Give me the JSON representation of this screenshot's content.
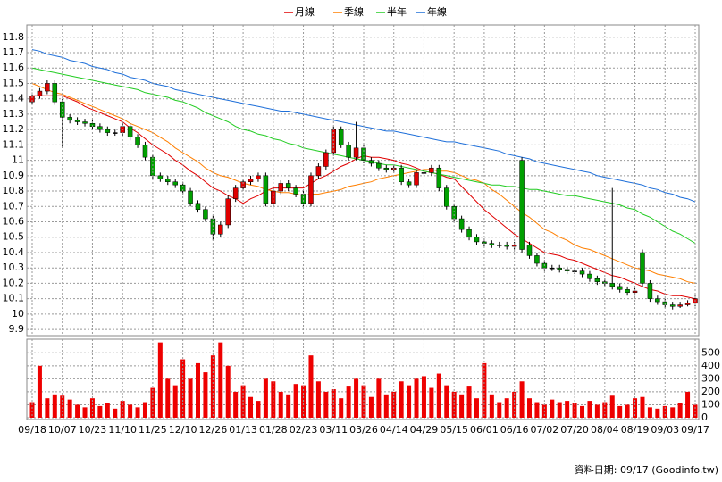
{
  "chart_data": [
    {
      "type": "candlestick",
      "open": [
        11.38,
        11.42,
        11.45,
        11.5,
        11.38,
        11.28,
        11.26,
        11.25,
        11.24,
        11.22,
        11.2,
        11.18,
        11.18,
        11.22,
        11.15,
        11.1,
        11.02,
        10.9,
        10.88,
        10.86,
        10.84,
        10.8,
        10.72,
        10.68,
        10.62,
        10.52,
        10.58,
        10.75,
        10.82,
        10.86,
        10.88,
        10.9,
        10.72,
        10.8,
        10.85,
        10.82,
        10.78,
        10.72,
        10.9,
        10.96,
        11.05,
        11.2,
        11.1,
        11.02,
        11.08,
        11.0,
        10.98,
        10.95,
        10.94,
        10.95,
        10.86,
        10.84,
        10.92,
        10.92,
        10.95,
        10.82,
        10.7,
        10.62,
        10.55,
        10.5,
        10.47,
        10.46,
        10.45,
        10.45,
        10.44,
        11.0,
        10.45,
        10.38,
        10.33,
        10.3,
        10.3,
        10.29,
        10.28,
        10.28,
        10.26,
        10.23,
        10.21,
        10.2,
        10.18,
        10.16,
        10.14,
        10.4,
        10.2,
        10.1,
        10.08,
        10.06,
        10.05,
        10.06,
        10.07
      ],
      "high": [
        11.44,
        11.47,
        11.52,
        11.52,
        11.4,
        11.3,
        11.28,
        11.27,
        11.26,
        11.24,
        11.22,
        11.2,
        11.24,
        11.24,
        11.17,
        11.12,
        11.04,
        10.92,
        10.9,
        10.88,
        10.86,
        10.82,
        10.74,
        10.7,
        10.64,
        10.6,
        10.77,
        10.84,
        10.88,
        10.9,
        10.92,
        10.92,
        10.82,
        10.87,
        10.87,
        10.84,
        10.8,
        10.92,
        10.98,
        11.07,
        11.22,
        11.22,
        11.12,
        11.25,
        11.1,
        11.02,
        11.0,
        10.97,
        10.97,
        10.97,
        10.88,
        10.94,
        10.94,
        10.97,
        10.97,
        10.84,
        10.72,
        10.64,
        10.57,
        10.52,
        10.49,
        10.48,
        10.47,
        10.47,
        10.47,
        11.02,
        10.47,
        10.4,
        10.35,
        10.32,
        10.32,
        10.31,
        10.3,
        10.3,
        10.28,
        10.25,
        10.23,
        10.82,
        10.2,
        10.18,
        10.17,
        10.42,
        10.22,
        10.12,
        10.1,
        10.08,
        10.08,
        10.09,
        10.12
      ],
      "low": [
        11.36,
        11.4,
        11.43,
        11.36,
        11.08,
        11.24,
        11.23,
        11.22,
        11.2,
        11.18,
        11.16,
        11.16,
        11.16,
        11.13,
        11.08,
        11.0,
        10.88,
        10.86,
        10.84,
        10.82,
        10.78,
        10.7,
        10.66,
        10.6,
        10.48,
        10.5,
        10.56,
        10.73,
        10.8,
        10.84,
        10.86,
        10.7,
        10.7,
        10.78,
        10.8,
        10.76,
        10.7,
        10.7,
        10.88,
        10.94,
        11.03,
        11.08,
        11.0,
        11.0,
        10.98,
        10.96,
        10.93,
        10.92,
        10.92,
        10.84,
        10.82,
        10.82,
        10.9,
        10.9,
        10.8,
        10.68,
        10.6,
        10.53,
        10.48,
        10.45,
        10.44,
        10.43,
        10.43,
        10.42,
        10.42,
        10.4,
        10.36,
        10.31,
        10.28,
        10.28,
        10.27,
        10.26,
        10.26,
        10.24,
        10.21,
        10.19,
        10.18,
        10.16,
        10.14,
        10.12,
        10.12,
        10.18,
        10.08,
        10.06,
        10.04,
        10.03,
        10.04,
        10.05,
        10.05
      ],
      "close": [
        11.42,
        11.45,
        11.5,
        11.38,
        11.28,
        11.26,
        11.25,
        11.24,
        11.22,
        11.2,
        11.18,
        11.18,
        11.22,
        11.15,
        11.1,
        11.02,
        10.9,
        10.88,
        10.86,
        10.84,
        10.8,
        10.72,
        10.68,
        10.62,
        10.52,
        10.58,
        10.75,
        10.82,
        10.86,
        10.88,
        10.9,
        10.72,
        10.8,
        10.85,
        10.82,
        10.78,
        10.72,
        10.9,
        10.96,
        11.05,
        11.2,
        11.1,
        11.02,
        11.08,
        11.0,
        10.98,
        10.95,
        10.94,
        10.95,
        10.86,
        10.84,
        10.92,
        10.92,
        10.95,
        10.82,
        10.7,
        10.62,
        10.55,
        10.5,
        10.47,
        10.46,
        10.45,
        10.45,
        10.44,
        10.45,
        10.42,
        10.38,
        10.33,
        10.3,
        10.3,
        10.29,
        10.28,
        10.28,
        10.26,
        10.23,
        10.21,
        10.2,
        10.18,
        10.16,
        10.14,
        10.15,
        10.2,
        10.1,
        10.08,
        10.06,
        10.05,
        10.06,
        10.07,
        10.1
      ],
      "up_color": "#e00000",
      "down_color": "#00a000",
      "flat_color": "#000000",
      "series": [
        {
          "name": "月線",
          "color": "#e00000",
          "values": [
            11.42,
            11.42,
            11.42,
            11.42,
            11.42,
            11.4,
            11.38,
            11.35,
            11.33,
            11.31,
            11.29,
            11.27,
            11.25,
            11.21,
            11.18,
            11.14,
            11.1,
            11.07,
            11.04,
            11.0,
            10.97,
            10.93,
            10.9,
            10.86,
            10.82,
            10.8,
            10.77,
            10.75,
            10.72,
            10.75,
            10.77,
            10.8,
            10.82,
            10.82,
            10.82,
            10.82,
            10.82,
            10.85,
            10.88,
            10.9,
            10.93,
            10.96,
            10.98,
            11.01,
            11.03,
            11.02,
            11.02,
            11.01,
            11.0,
            10.98,
            10.97,
            10.95,
            10.93,
            10.92,
            10.91,
            10.89,
            10.88,
            10.83,
            10.78,
            10.73,
            10.68,
            10.64,
            10.6,
            10.56,
            10.52,
            10.49,
            10.46,
            10.43,
            10.4,
            10.39,
            10.38,
            10.36,
            10.35,
            10.33,
            10.31,
            10.29,
            10.27,
            10.25,
            10.24,
            10.22,
            10.2,
            10.18,
            10.16,
            10.15,
            10.13,
            10.12,
            10.12,
            10.11,
            10.1
          ]
        },
        {
          "name": "季線",
          "color": "#ff7f00",
          "values": [
            11.5,
            11.48,
            11.46,
            11.44,
            11.43,
            11.41,
            11.39,
            11.37,
            11.35,
            11.33,
            11.31,
            11.29,
            11.27,
            11.24,
            11.22,
            11.2,
            11.18,
            11.15,
            11.12,
            11.08,
            11.05,
            11.02,
            10.99,
            10.95,
            10.92,
            10.9,
            10.89,
            10.87,
            10.85,
            10.84,
            10.83,
            10.81,
            10.8,
            10.79,
            10.79,
            10.78,
            10.77,
            10.78,
            10.78,
            10.79,
            10.8,
            10.81,
            10.83,
            10.84,
            10.85,
            10.86,
            10.88,
            10.89,
            10.9,
            10.91,
            10.92,
            10.93,
            10.94,
            10.94,
            10.93,
            10.93,
            10.92,
            10.9,
            10.88,
            10.87,
            10.85,
            10.81,
            10.78,
            10.74,
            10.7,
            10.66,
            10.63,
            10.59,
            10.55,
            10.53,
            10.5,
            10.48,
            10.45,
            10.43,
            10.42,
            10.4,
            10.38,
            10.36,
            10.34,
            10.32,
            10.3,
            10.29,
            10.28,
            10.26,
            10.25,
            10.24,
            10.23,
            10.21,
            10.2
          ]
        },
        {
          "name": "半年",
          "color": "#22cc22",
          "values": [
            11.6,
            11.59,
            11.58,
            11.57,
            11.56,
            11.55,
            11.54,
            11.53,
            11.52,
            11.51,
            11.5,
            11.49,
            11.48,
            11.47,
            11.46,
            11.44,
            11.43,
            11.42,
            11.41,
            11.39,
            11.38,
            11.36,
            11.34,
            11.31,
            11.29,
            11.27,
            11.25,
            11.22,
            11.2,
            11.19,
            11.17,
            11.16,
            11.14,
            11.13,
            11.11,
            11.1,
            11.08,
            11.07,
            11.06,
            11.05,
            11.04,
            11.03,
            11.02,
            11.01,
            11.0,
            10.99,
            10.98,
            10.97,
            10.97,
            10.96,
            10.95,
            10.94,
            10.93,
            10.92,
            10.91,
            10.9,
            10.89,
            10.88,
            10.87,
            10.86,
            10.85,
            10.84,
            10.84,
            10.83,
            10.83,
            10.82,
            10.81,
            10.81,
            10.8,
            10.79,
            10.78,
            10.77,
            10.77,
            10.76,
            10.75,
            10.74,
            10.73,
            10.72,
            10.71,
            10.69,
            10.68,
            10.65,
            10.63,
            10.6,
            10.57,
            10.54,
            10.52,
            10.49,
            10.46
          ]
        },
        {
          "name": "年線",
          "color": "#1e6fd9",
          "values": [
            11.72,
            11.71,
            11.69,
            11.68,
            11.67,
            11.65,
            11.64,
            11.63,
            11.61,
            11.6,
            11.59,
            11.57,
            11.56,
            11.54,
            11.53,
            11.52,
            11.5,
            11.49,
            11.48,
            11.46,
            11.45,
            11.44,
            11.43,
            11.42,
            11.41,
            11.4,
            11.39,
            11.38,
            11.37,
            11.36,
            11.35,
            11.34,
            11.33,
            11.32,
            11.32,
            11.31,
            11.3,
            11.29,
            11.28,
            11.27,
            11.26,
            11.25,
            11.24,
            11.23,
            11.22,
            11.21,
            11.2,
            11.19,
            11.19,
            11.18,
            11.17,
            11.16,
            11.15,
            11.14,
            11.13,
            11.12,
            11.12,
            11.11,
            11.1,
            11.09,
            11.08,
            11.07,
            11.06,
            11.04,
            11.03,
            11.02,
            11.01,
            10.99,
            10.98,
            10.97,
            10.96,
            10.95,
            10.94,
            10.93,
            10.92,
            10.9,
            10.89,
            10.88,
            10.87,
            10.86,
            10.85,
            10.84,
            10.82,
            10.81,
            10.79,
            10.78,
            10.76,
            10.75,
            10.73
          ]
        }
      ],
      "ylim": [
        9.86,
        11.88
      ],
      "yticks": [
        11.8,
        11.7,
        11.6,
        11.5,
        11.4,
        11.3,
        11.2,
        11.1,
        11,
        10.9,
        10.8,
        10.7,
        10.6,
        10.5,
        10.4,
        10.3,
        10.2,
        10.1,
        10,
        9.9
      ],
      "grid": true
    },
    {
      "type": "bar",
      "categories": [
        "09/18",
        null,
        null,
        null,
        "10/07",
        null,
        null,
        null,
        "10/23",
        null,
        null,
        null,
        "11/10",
        null,
        null,
        null,
        "11/25",
        null,
        null,
        null,
        "12/10",
        null,
        null,
        null,
        "12/26",
        null,
        null,
        null,
        "01/13",
        null,
        null,
        null,
        "01/28",
        null,
        null,
        null,
        "02/23",
        null,
        null,
        null,
        "03/11",
        null,
        null,
        null,
        "03/26",
        null,
        null,
        null,
        "04/14",
        null,
        null,
        null,
        "04/29",
        null,
        null,
        null,
        "05/15",
        null,
        null,
        null,
        "06/01",
        null,
        null,
        null,
        "06/16",
        null,
        null,
        null,
        "07/02",
        null,
        null,
        null,
        "07/20",
        null,
        null,
        null,
        "08/04",
        null,
        null,
        null,
        "08/19",
        null,
        null,
        null,
        "09/03",
        null,
        null,
        null,
        "09/17"
      ],
      "values": [
        120,
        400,
        150,
        180,
        170,
        140,
        100,
        80,
        150,
        90,
        110,
        70,
        130,
        100,
        80,
        120,
        230,
        580,
        300,
        250,
        450,
        300,
        420,
        350,
        480,
        580,
        400,
        200,
        250,
        160,
        130,
        300,
        280,
        200,
        180,
        260,
        250,
        480,
        280,
        200,
        220,
        150,
        240,
        300,
        250,
        160,
        300,
        180,
        200,
        280,
        250,
        300,
        320,
        230,
        340,
        250,
        200,
        180,
        240,
        150,
        420,
        180,
        120,
        150,
        200,
        280,
        150,
        120,
        100,
        140,
        120,
        130,
        110,
        90,
        130,
        100,
        120,
        170,
        90,
        100,
        150,
        160,
        80,
        70,
        90,
        80,
        110,
        200,
        100
      ],
      "color": "#ee0000",
      "ylim": [
        0,
        605
      ],
      "yticks": [
        0,
        100,
        200,
        300,
        400,
        500
      ],
      "grid": true,
      "footer": "資料日期: 09/17 (Goodinfo.tw)"
    }
  ]
}
